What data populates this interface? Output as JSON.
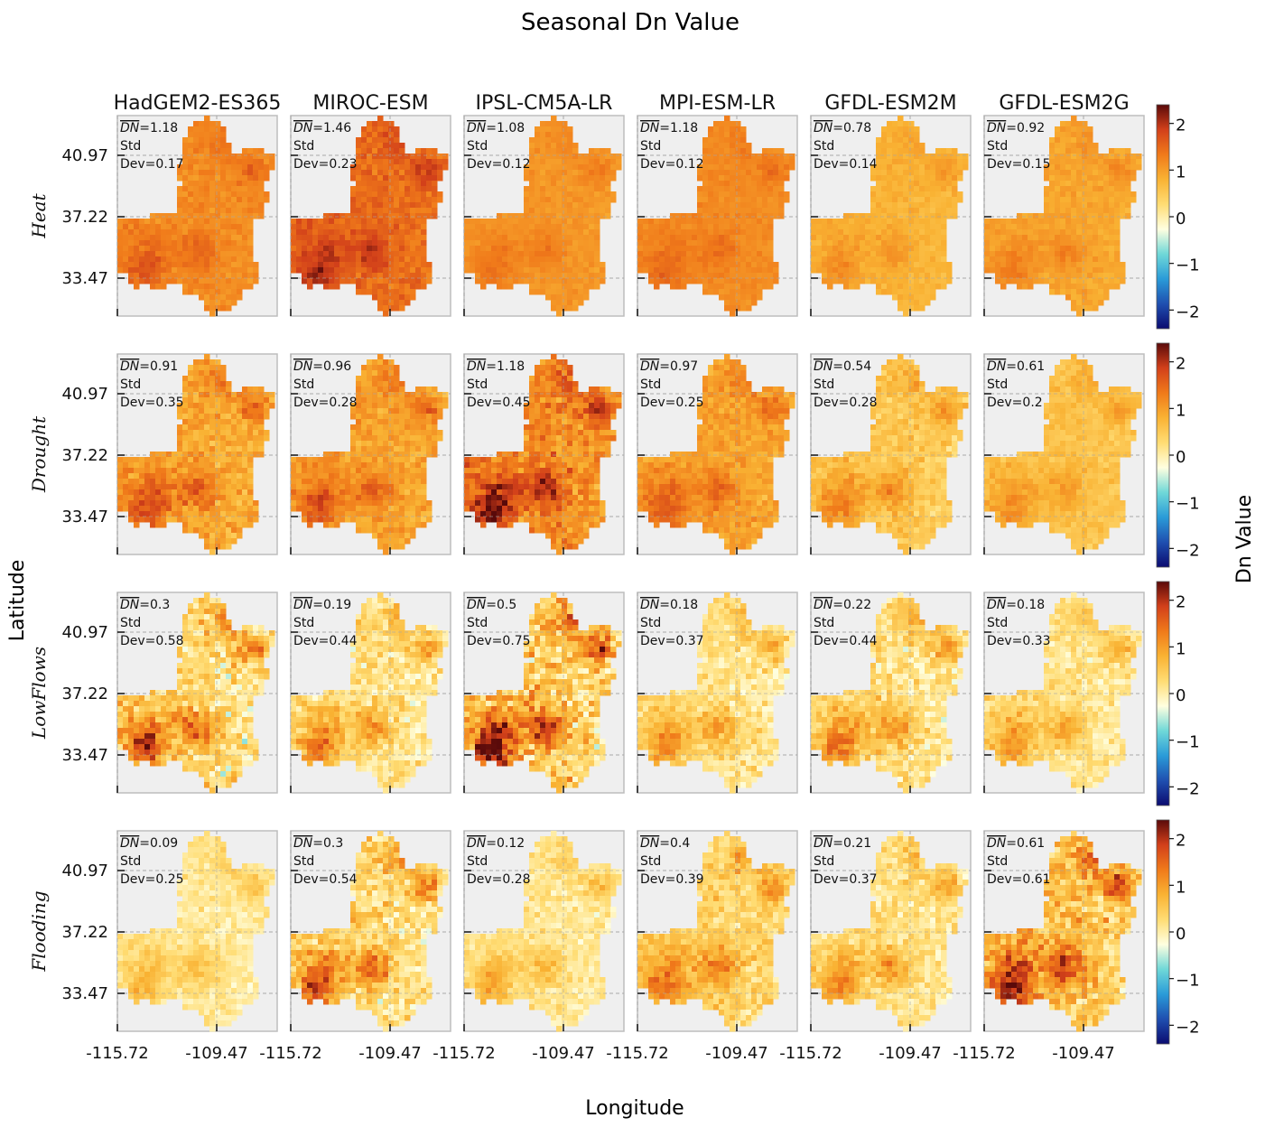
{
  "chart_data": {
    "type": "heatmap",
    "title": "Seasonal Dn Value",
    "xlabel": "Longitude",
    "ylabel": "Latitude",
    "colorbar_label": "Dn Value",
    "colorbar_range": [
      -2.4,
      2.4
    ],
    "colorbar_ticks": [
      "2",
      "1",
      "0",
      "−1",
      "−2"
    ],
    "colorbar_tick_values": [
      2,
      1,
      0,
      -1,
      -2
    ],
    "x_ticks": [
      "-115.72",
      "-109.47"
    ],
    "y_ticks": [
      "40.97",
      "37.22",
      "33.47"
    ],
    "models": [
      "HadGEM2-ES365",
      "MIROC-ESM",
      "IPSL-CM5A-LR",
      "MPI-ESM-LR",
      "GFDL-ESM2M",
      "GFDL-ESM2G"
    ],
    "rows": [
      {
        "name": "Heat",
        "cells": [
          {
            "dn_label": "DN",
            "mean": "=1.18",
            "std_label": "Std",
            "dev": "Dev=0.17",
            "dn": 1.18,
            "sd": 0.17
          },
          {
            "dn_label": "DN",
            "mean": "=1.46",
            "std_label": "Std",
            "dev": "Dev=0.23",
            "dn": 1.46,
            "sd": 0.23
          },
          {
            "dn_label": "DN",
            "mean": "=1.08",
            "std_label": "Std",
            "dev": "Dev=0.12",
            "dn": 1.08,
            "sd": 0.12
          },
          {
            "dn_label": "DN",
            "mean": "=1.18",
            "std_label": "Std",
            "dev": "Dev=0.12",
            "dn": 1.18,
            "sd": 0.12
          },
          {
            "dn_label": "DN",
            "mean": "=0.78",
            "std_label": "Std",
            "dev": "Dev=0.14",
            "dn": 0.78,
            "sd": 0.14
          },
          {
            "dn_label": "DN",
            "mean": "=0.92",
            "std_label": "Std",
            "dev": "Dev=0.15",
            "dn": 0.92,
            "sd": 0.15
          }
        ]
      },
      {
        "name": "Drought",
        "cells": [
          {
            "dn_label": "DN",
            "mean": "=0.91",
            "std_label": "Std",
            "dev": "Dev=0.35",
            "dn": 0.91,
            "sd": 0.35
          },
          {
            "dn_label": "DN",
            "mean": "=0.96",
            "std_label": "Std",
            "dev": "Dev=0.28",
            "dn": 0.96,
            "sd": 0.28
          },
          {
            "dn_label": "DN",
            "mean": "=1.18",
            "std_label": "Std",
            "dev": "Dev=0.45",
            "dn": 1.18,
            "sd": 0.45
          },
          {
            "dn_label": "DN",
            "mean": "=0.97",
            "std_label": "Std",
            "dev": "Dev=0.25",
            "dn": 0.97,
            "sd": 0.25
          },
          {
            "dn_label": "DN",
            "mean": "=0.54",
            "std_label": "Std",
            "dev": "Dev=0.28",
            "dn": 0.54,
            "sd": 0.28
          },
          {
            "dn_label": "DN",
            "mean": "=0.61",
            "std_label": "Std",
            "dev": "Dev=0.2",
            "dn": 0.61,
            "sd": 0.2
          }
        ]
      },
      {
        "name": "LowFlows",
        "cells": [
          {
            "dn_label": "DN",
            "mean": "=0.3",
            "std_label": "Std",
            "dev": "Dev=0.58",
            "dn": 0.3,
            "sd": 0.58
          },
          {
            "dn_label": "DN",
            "mean": "=0.19",
            "std_label": "Std",
            "dev": "Dev=0.44",
            "dn": 0.19,
            "sd": 0.44
          },
          {
            "dn_label": "DN",
            "mean": "=0.5",
            "std_label": "Std",
            "dev": "Dev=0.75",
            "dn": 0.5,
            "sd": 0.75
          },
          {
            "dn_label": "DN",
            "mean": "=0.18",
            "std_label": "Std",
            "dev": "Dev=0.37",
            "dn": 0.18,
            "sd": 0.37
          },
          {
            "dn_label": "DN",
            "mean": "=0.22",
            "std_label": "Std",
            "dev": "Dev=0.44",
            "dn": 0.22,
            "sd": 0.44
          },
          {
            "dn_label": "DN",
            "mean": "=0.18",
            "std_label": "Std",
            "dev": "Dev=0.33",
            "dn": 0.18,
            "sd": 0.33
          }
        ]
      },
      {
        "name": "Flooding",
        "cells": [
          {
            "dn_label": "DN",
            "mean": "=0.09",
            "std_label": "Std",
            "dev": "Dev=0.25",
            "dn": 0.09,
            "sd": 0.25
          },
          {
            "dn_label": "DN",
            "mean": "=0.3",
            "std_label": "Std",
            "dev": "Dev=0.54",
            "dn": 0.3,
            "sd": 0.54
          },
          {
            "dn_label": "DN",
            "mean": "=0.12",
            "std_label": "Std",
            "dev": "Dev=0.28",
            "dn": 0.12,
            "sd": 0.28
          },
          {
            "dn_label": "DN",
            "mean": "=0.4",
            "std_label": "Std",
            "dev": "Dev=0.39",
            "dn": 0.4,
            "sd": 0.39
          },
          {
            "dn_label": "DN",
            "mean": "=0.21",
            "std_label": "Std",
            "dev": "Dev=0.37",
            "dn": 0.21,
            "sd": 0.37
          },
          {
            "dn_label": "DN",
            "mean": "=0.61",
            "std_label": "Std",
            "dev": "Dev=0.61",
            "dn": 0.61,
            "sd": 0.61
          }
        ]
      }
    ],
    "colormap": [
      "#0b0b70",
      "#1f4fb0",
      "#2a9bd8",
      "#6fd8d8",
      "#ffffe0",
      "#ffdc73",
      "#f9b233",
      "#f07a1a",
      "#d2401a",
      "#5a0a0a"
    ]
  }
}
